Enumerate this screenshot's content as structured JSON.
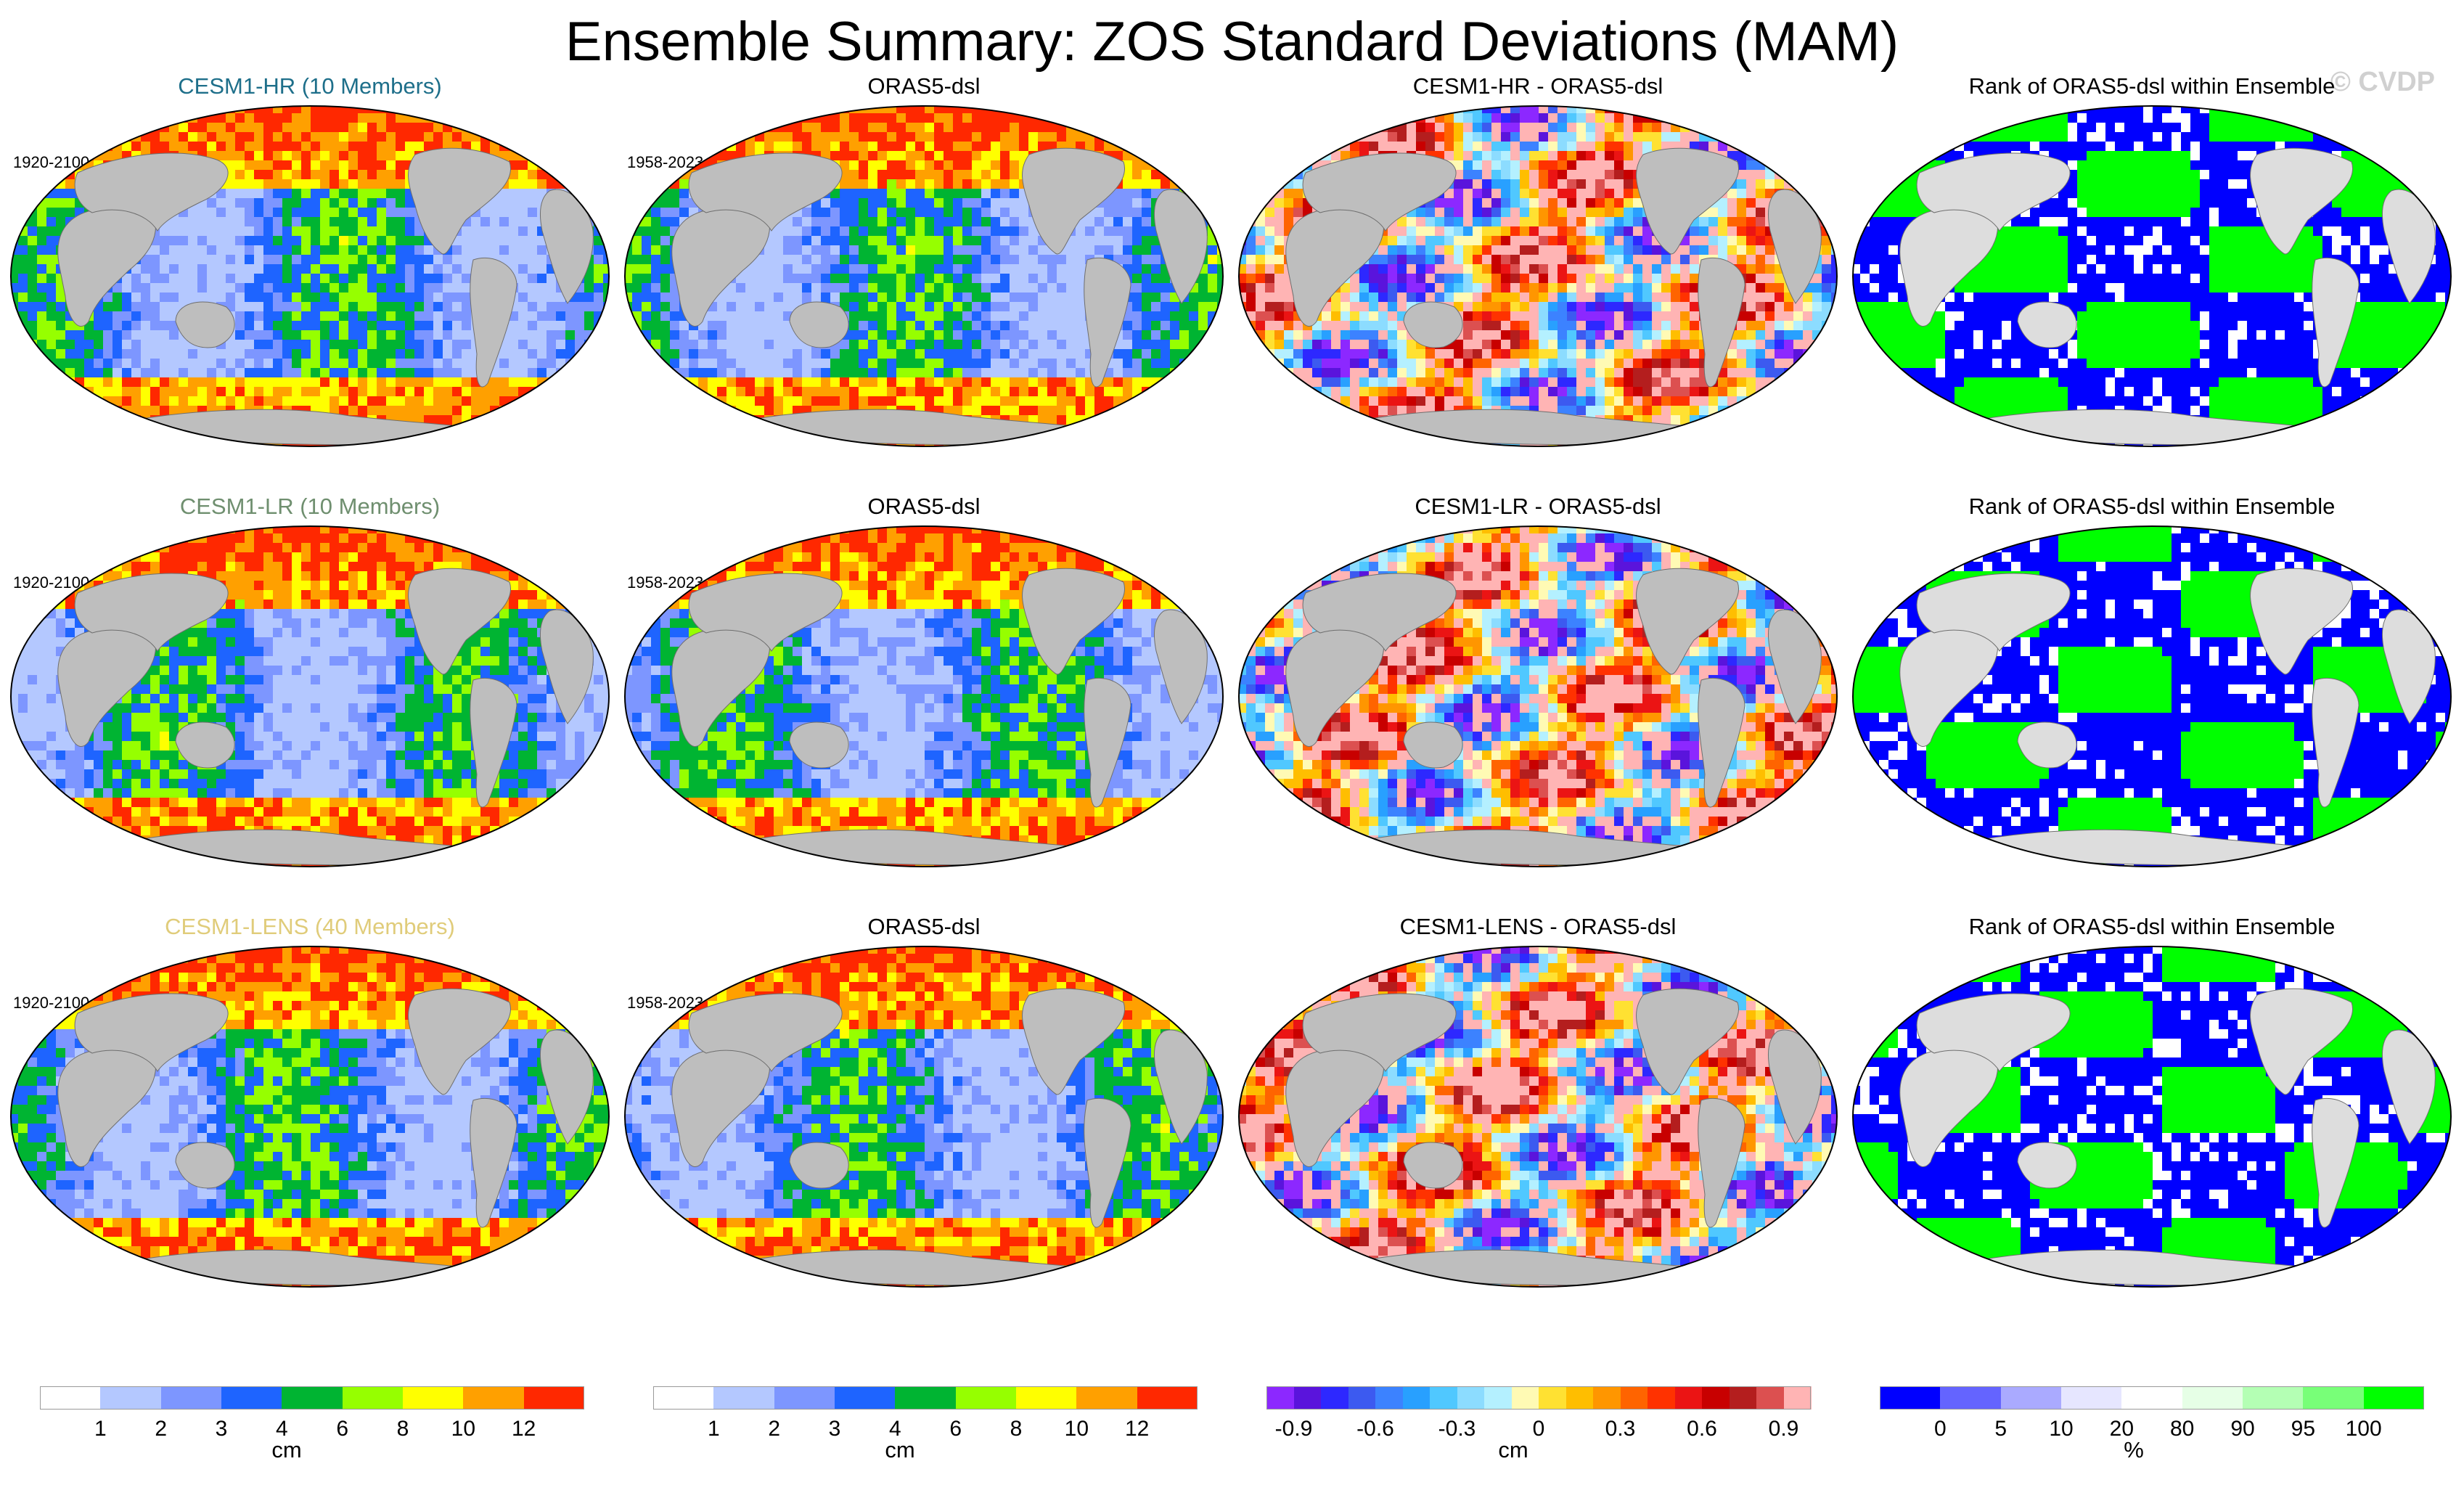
{
  "title": "Ensemble Summary: ZOS Standard Deviations (MAM)",
  "watermark": "© CVDP",
  "rows": [
    {
      "model_title": "CESM1-HR (10 Members)",
      "model_color": "#1e6f8a",
      "model_years": "1920-2100",
      "obs_title": "ORAS5-dsl",
      "obs_years": "1958-2023",
      "diff_title": "CESM1-HR - ORAS5-dsl",
      "rank_title": "Rank of ORAS5-dsl within Ensemble"
    },
    {
      "model_title": "CESM1-LR (10 Members)",
      "model_color": "#6f8f6f",
      "model_years": "1920-2100",
      "obs_title": "ORAS5-dsl",
      "obs_years": "1958-2023",
      "diff_title": "CESM1-LR - ORAS5-dsl",
      "rank_title": "Rank of ORAS5-dsl within Ensemble"
    },
    {
      "model_title": "CESM1-LENS (40 Members)",
      "model_color": "#e0cc7a",
      "model_years": "1920-2100",
      "obs_title": "ORAS5-dsl",
      "obs_years": "1958-2023",
      "diff_title": "CESM1-LENS - ORAS5-dsl",
      "rank_title": "Rank of ORAS5-dsl within Ensemble"
    }
  ],
  "colorbars": [
    {
      "unit": "cm",
      "colors": [
        "#ffffff",
        "#b4c8ff",
        "#7d96ff",
        "#1e64ff",
        "#00b432",
        "#96ff00",
        "#ffff00",
        "#ffa000",
        "#ff2800"
      ],
      "labels": [
        "1",
        "2",
        "3",
        "4",
        "6",
        "8",
        "10",
        "12"
      ]
    },
    {
      "unit": "cm",
      "colors": [
        "#ffffff",
        "#b4c8ff",
        "#7d96ff",
        "#1e64ff",
        "#00b432",
        "#96ff00",
        "#ffff00",
        "#ffa000",
        "#ff2800"
      ],
      "labels": [
        "1",
        "2",
        "3",
        "4",
        "6",
        "8",
        "10",
        "12"
      ]
    },
    {
      "unit": "cm",
      "colors": [
        "#8c28ff",
        "#5a14dc",
        "#2d28ff",
        "#3c5af0",
        "#3c82ff",
        "#28a0ff",
        "#50c8ff",
        "#8cdcff",
        "#b4f0ff",
        "#fffab4",
        "#ffe132",
        "#ffbe00",
        "#ff9600",
        "#ff6400",
        "#ff3200",
        "#eb1414",
        "#c80000",
        "#b41e1e",
        "#dc5050",
        "#ffb4b4"
      ],
      "labels": [
        "-0.9",
        "-0.6",
        "-0.3",
        "0",
        "0.3",
        "0.6",
        "0.9"
      ],
      "label_index": [
        1,
        4,
        7,
        10,
        13,
        16,
        19
      ]
    },
    {
      "unit": "%",
      "colors": [
        "#0000ff",
        "#6464ff",
        "#aaaaff",
        "#e6e6ff",
        "#ffffff",
        "#e6ffe6",
        "#b4ffb4",
        "#78ff78",
        "#00ff00"
      ],
      "labels": [
        "0",
        "5",
        "10",
        "20",
        "80",
        "90",
        "95",
        "100"
      ]
    }
  ]
}
